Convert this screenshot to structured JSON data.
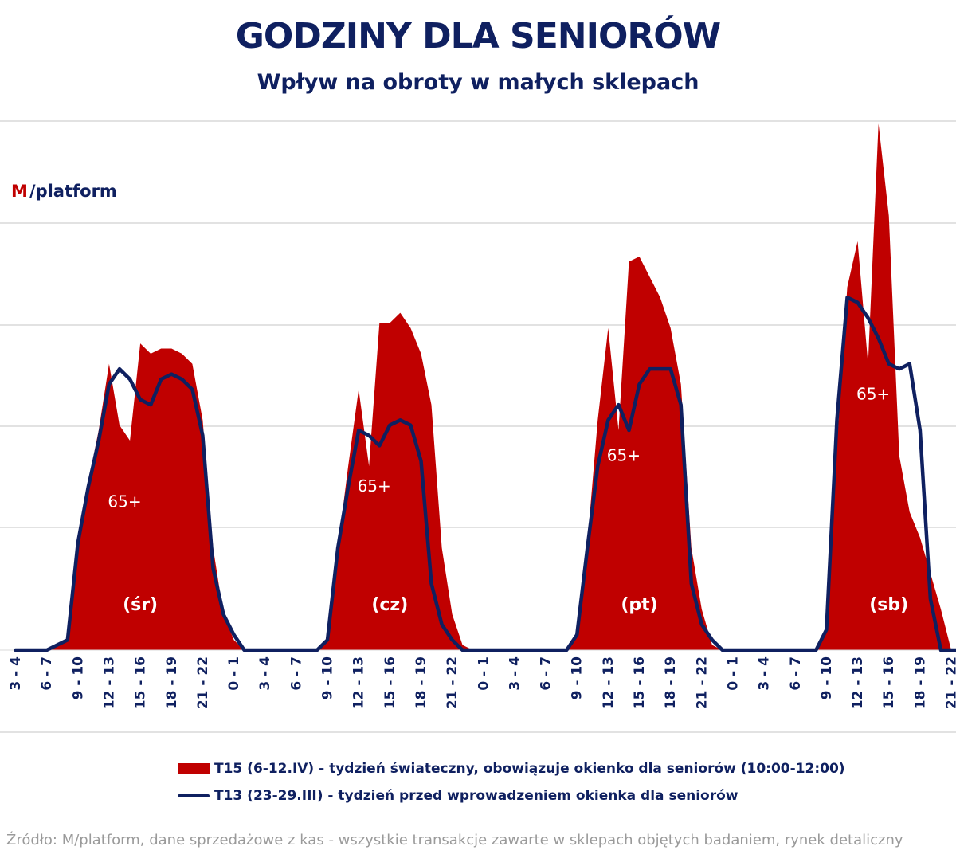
{
  "title": "GODZINY DLA SENIORÓW",
  "subtitle": "Wpływ na obroty w małych sklepach",
  "logo": {
    "mark": "M",
    "text": "/platform"
  },
  "legend": {
    "series_a": "T15 (6-12.IV) - tydzień świateczny, obowiązuje okienko dla seniorów (10:00-12:00)",
    "series_b": "T13 (23-29.III) - tydzień przed wprowadzeniem okienka dla seniorów"
  },
  "source": "Źródło: M/platform, dane sprzedażowe z kas - wszystkie transakcje zawarte w sklepach objętych badaniem, rynek detaliczny",
  "colors": {
    "area": "#c00000",
    "line": "#0f2060",
    "grid": "#d9d9d9",
    "text": "#0f2060"
  },
  "chart_data": {
    "type": "area",
    "title": "GODZINY DLA SENIORÓW",
    "subtitle": "Wpływ na obroty w małych sklepach",
    "xlabel": "",
    "ylabel": "",
    "ylim": [
      0,
      100
    ],
    "grid": true,
    "legend_position": "bottom",
    "x_tick_labels": [
      "3 - 4",
      "6 - 7",
      "9 - 10",
      "12 - 13",
      "15 - 16",
      "18 - 19",
      "21 - 22",
      "0 - 1",
      "3 - 4",
      "6 - 7",
      "9 - 10",
      "12 - 13",
      "15 - 16",
      "18 - 19",
      "21 - 22",
      "0 - 1",
      "3 - 4",
      "6 - 7",
      "9 - 10",
      "12 - 13",
      "15 - 16",
      "18 - 19",
      "21 - 22",
      "0 - 1",
      "3 - 4",
      "6 - 7",
      "9 - 10",
      "12 - 13",
      "15 - 16",
      "18 - 19",
      "21 - 22"
    ],
    "day_labels": [
      {
        "label": "(śr)",
        "at_hour": 12
      },
      {
        "label": "(cz)",
        "at_hour": 36
      },
      {
        "label": "(pt)",
        "at_hour": 60
      },
      {
        "label": "(sb)",
        "at_hour": 84
      }
    ],
    "annotations": [
      {
        "text": "65+",
        "at_hour": 10.5,
        "y": 28
      },
      {
        "text": "65+",
        "at_hour": 34.5,
        "y": 31
      },
      {
        "text": "65+",
        "at_hour": 58.5,
        "y": 37
      },
      {
        "text": "65+",
        "at_hour": 82.5,
        "y": 49
      }
    ],
    "series": [
      {
        "name": "T15 (6-12.IV) - tydzień świateczny, obowiązuje okienko dla seniorów (10:00-12:00)",
        "style": "area",
        "x": [
          0,
          3,
          5,
          6,
          7,
          8,
          9,
          10,
          11,
          12,
          13,
          14,
          15,
          16,
          17,
          18,
          19,
          20,
          21,
          22,
          23,
          24,
          27,
          29,
          30,
          31,
          32,
          33,
          34,
          35,
          36,
          37,
          38,
          39,
          40,
          41,
          42,
          43,
          44,
          45,
          46,
          47,
          48,
          51,
          53,
          54,
          55,
          56,
          57,
          58,
          59,
          60,
          61,
          62,
          63,
          64,
          65,
          66,
          67,
          68,
          69,
          70,
          71,
          72,
          75,
          77,
          78,
          79,
          80,
          81,
          82,
          83,
          84,
          85,
          86,
          87,
          88,
          89,
          90,
          91,
          92
        ],
        "values": [
          0,
          0,
          2,
          20,
          33,
          43,
          56,
          44,
          41,
          60,
          58,
          59,
          59,
          58,
          56,
          45,
          20,
          7,
          2,
          0,
          0,
          0,
          0,
          0,
          2,
          20,
          36,
          51,
          36,
          64,
          64,
          66,
          63,
          58,
          48,
          20,
          7,
          1,
          0,
          0,
          0,
          0,
          0,
          0,
          0,
          3,
          21,
          45,
          63,
          43,
          76,
          77,
          73,
          69,
          63,
          52,
          20,
          8,
          1,
          0,
          0,
          0,
          0,
          0,
          0,
          0,
          4,
          40,
          71,
          80,
          56,
          103,
          85,
          38,
          27,
          22,
          15,
          8,
          0,
          0,
          0
        ]
      },
      {
        "name": "T13 (23-29.III) - tydzień przed wprowadzeniem okienka dla seniorów",
        "style": "line",
        "x": [
          0,
          3,
          5,
          6,
          7,
          8,
          9,
          10,
          11,
          12,
          13,
          14,
          15,
          16,
          17,
          18,
          19,
          20,
          21,
          22,
          23,
          24,
          27,
          29,
          30,
          31,
          32,
          33,
          34,
          35,
          36,
          37,
          38,
          39,
          40,
          41,
          42,
          43,
          44,
          45,
          46,
          47,
          48,
          51,
          53,
          54,
          55,
          56,
          57,
          58,
          59,
          60,
          61,
          62,
          63,
          64,
          65,
          66,
          67,
          68,
          69,
          70,
          71,
          72,
          75,
          77,
          78,
          79,
          80,
          81,
          82,
          83,
          84,
          85,
          86,
          87,
          88,
          89,
          90,
          91,
          92
        ],
        "values": [
          0,
          0,
          2,
          21,
          32,
          41,
          52,
          55,
          53,
          49,
          48,
          53,
          54,
          53,
          51,
          42,
          16,
          7,
          3,
          0,
          0,
          0,
          0,
          0,
          2,
          20,
          32,
          43,
          42,
          40,
          44,
          45,
          44,
          37,
          13,
          5,
          2,
          0,
          0,
          0,
          0,
          0,
          0,
          0,
          0,
          3,
          20,
          36,
          45,
          48,
          43,
          52,
          55,
          55,
          55,
          48,
          13,
          5,
          2,
          0,
          0,
          0,
          0,
          0,
          0,
          0,
          4,
          45,
          69,
          68,
          65,
          61,
          56,
          55,
          56,
          43,
          10,
          0,
          0,
          0,
          0
        ]
      }
    ]
  }
}
